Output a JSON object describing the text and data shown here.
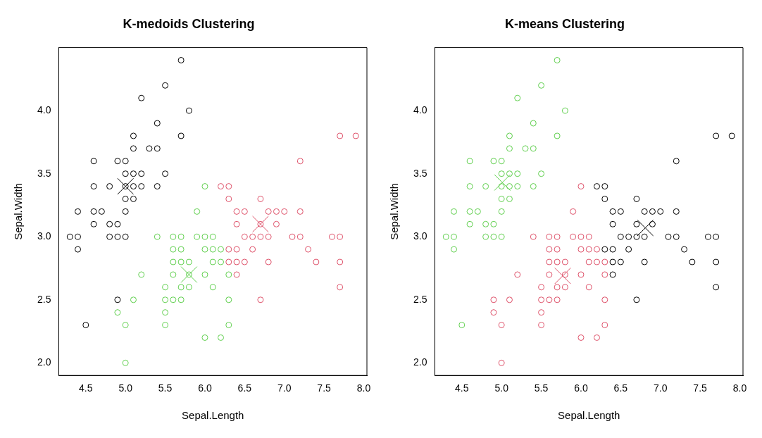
{
  "chart_data": [
    {
      "type": "scatter",
      "title": "K-medoids Clustering",
      "xlabel": "Sepal.Length",
      "ylabel": "Sepal.Width",
      "xlim": [
        4.16,
        8.04
      ],
      "ylim": [
        1.9,
        4.5
      ],
      "xticks": [
        4.5,
        {
          "value": 5,
          "label": "5.0"
        },
        5.5,
        {
          "value": 6,
          "label": "6.0"
        },
        6.5,
        {
          "value": 7,
          "label": "7.0"
        },
        7.5,
        {
          "value": 8,
          "label": "8.0"
        }
      ],
      "yticks": [
        {
          "value": 2,
          "label": "2.0"
        },
        {
          "value": 2.5,
          "label": "2.5"
        },
        {
          "value": 3,
          "label": "3.0"
        },
        {
          "value": 3.5,
          "label": "3.5"
        },
        {
          "value": 4,
          "label": "4.0"
        }
      ],
      "grid": false,
      "legend": false,
      "marker": "circle",
      "series": [
        {
          "color": "#000000",
          "x": [
            4.3,
            4.4,
            4.4,
            4.4,
            4.5,
            4.6,
            4.6,
            4.6,
            4.6,
            4.7,
            4.8,
            4.8,
            4.8,
            4.9,
            4.9,
            4.9,
            4.9,
            5.0,
            5.0,
            5.0,
            5.0,
            5.0,
            5.0,
            5.1,
            5.1,
            5.1,
            5.1,
            5.1,
            5.2,
            5.2,
            5.2,
            5.3,
            5.4,
            5.4,
            5.4,
            5.5,
            5.5,
            5.7,
            5.7,
            5.8
          ],
          "values": [
            3.0,
            2.9,
            3.0,
            3.2,
            2.3,
            3.1,
            3.4,
            3.6,
            3.2,
            3.2,
            3.4,
            3.0,
            3.1,
            3.0,
            3.1,
            3.6,
            2.5,
            3.6,
            3.4,
            3.0,
            3.2,
            3.5,
            3.3,
            3.5,
            3.8,
            3.7,
            3.3,
            3.4,
            3.5,
            3.4,
            4.1,
            3.7,
            3.9,
            3.7,
            3.4,
            4.2,
            3.5,
            4.4,
            3.8,
            4.0
          ]
        },
        {
          "color": "#df536b",
          "x": [
            6.2,
            6.3,
            6.3,
            6.3,
            6.3,
            6.4,
            6.4,
            6.4,
            6.4,
            6.4,
            6.5,
            6.5,
            6.5,
            6.6,
            6.6,
            6.7,
            6.7,
            6.7,
            6.7,
            6.8,
            6.8,
            6.8,
            6.9,
            6.9,
            7.0,
            7.1,
            7.2,
            7.2,
            7.2,
            7.3,
            7.4,
            7.6,
            7.7,
            7.7,
            7.7,
            7.7,
            7.9
          ],
          "values": [
            3.4,
            3.3,
            2.9,
            2.8,
            3.4,
            3.2,
            2.9,
            2.7,
            2.8,
            3.1,
            2.8,
            3.0,
            3.2,
            2.9,
            3.0,
            3.1,
            3.0,
            2.5,
            3.3,
            2.8,
            3.0,
            3.2,
            3.1,
            3.2,
            3.2,
            3.0,
            3.6,
            3.2,
            3.0,
            2.9,
            2.8,
            3.0,
            3.8,
            2.6,
            2.8,
            3.0,
            3.8
          ]
        },
        {
          "color": "#61d04f",
          "x": [
            4.9,
            5.0,
            5.0,
            5.1,
            5.2,
            5.4,
            5.5,
            5.5,
            5.5,
            5.5,
            5.6,
            5.6,
            5.6,
            5.6,
            5.6,
            5.7,
            5.7,
            5.7,
            5.7,
            5.7,
            5.8,
            5.8,
            5.8,
            5.9,
            5.9,
            6.0,
            6.0,
            6.0,
            6.0,
            6.0,
            6.1,
            6.1,
            6.1,
            6.1,
            6.2,
            6.2,
            6.2,
            6.3,
            6.3,
            6.3
          ],
          "values": [
            2.4,
            2.0,
            2.3,
            2.5,
            2.7,
            3.0,
            2.3,
            2.4,
            2.5,
            2.6,
            2.9,
            3.0,
            2.5,
            2.7,
            2.8,
            2.8,
            2.6,
            3.0,
            2.9,
            2.5,
            2.7,
            2.6,
            2.8,
            3.0,
            3.2,
            2.2,
            2.9,
            2.7,
            3.4,
            3.0,
            2.9,
            2.8,
            3.0,
            2.6,
            2.2,
            2.9,
            2.8,
            2.5,
            2.3,
            2.7
          ]
        },
        {
          "color": "#000000",
          "marker": "cross",
          "x": [
            5.0
          ],
          "values": [
            3.4
          ]
        },
        {
          "color": "#df536b",
          "marker": "cross",
          "x": [
            6.7
          ],
          "values": [
            3.1
          ]
        },
        {
          "color": "#61d04f",
          "marker": "cross",
          "x": [
            5.8
          ],
          "values": [
            2.7
          ]
        }
      ]
    },
    {
      "type": "scatter",
      "title": "K-means Clustering",
      "xlabel": "Sepal.Length",
      "ylabel": "Sepal.Width",
      "xlim": [
        4.16,
        8.04
      ],
      "ylim": [
        1.9,
        4.5
      ],
      "xticks": [
        4.5,
        {
          "value": 5,
          "label": "5.0"
        },
        5.5,
        {
          "value": 6,
          "label": "6.0"
        },
        6.5,
        {
          "value": 7,
          "label": "7.0"
        },
        7.5,
        {
          "value": 8,
          "label": "8.0"
        }
      ],
      "yticks": [
        {
          "value": 2,
          "label": "2.0"
        },
        2.5,
        {
          "value": 3,
          "label": "3.0"
        },
        3.5,
        {
          "value": 4,
          "label": "4.0"
        }
      ],
      "grid": false,
      "legend": false,
      "marker": "circle",
      "series": [
        {
          "color": "#000000",
          "x": [
            6.2,
            6.3,
            6.3,
            6.3,
            6.4,
            6.4,
            6.4,
            6.4,
            6.4,
            6.5,
            6.5,
            6.5,
            6.6,
            6.6,
            6.7,
            6.7,
            6.7,
            6.7,
            6.8,
            6.8,
            6.8,
            6.9,
            6.9,
            7.0,
            7.1,
            7.2,
            7.2,
            7.2,
            7.3,
            7.4,
            7.6,
            7.7,
            7.7,
            7.7,
            7.7,
            7.9
          ],
          "values": [
            3.4,
            3.3,
            2.9,
            3.4,
            3.2,
            2.9,
            2.7,
            2.8,
            3.1,
            2.8,
            3.0,
            3.2,
            2.9,
            3.0,
            3.1,
            3.0,
            2.5,
            3.3,
            2.8,
            3.0,
            3.2,
            3.1,
            3.2,
            3.2,
            3.0,
            3.6,
            3.2,
            3.0,
            2.9,
            2.8,
            3.0,
            3.8,
            2.6,
            2.8,
            3.0,
            3.8
          ]
        },
        {
          "color": "#df536b",
          "x": [
            4.9,
            4.9,
            5.0,
            5.0,
            5.1,
            5.2,
            5.4,
            5.5,
            5.5,
            5.5,
            5.5,
            5.6,
            5.6,
            5.6,
            5.6,
            5.6,
            5.7,
            5.7,
            5.7,
            5.7,
            5.7,
            5.8,
            5.8,
            5.8,
            5.9,
            5.9,
            6.0,
            6.0,
            6.0,
            6.0,
            6.0,
            6.1,
            6.1,
            6.1,
            6.1,
            6.2,
            6.2,
            6.2,
            6.3,
            6.3,
            6.3,
            6.3
          ],
          "values": [
            2.4,
            2.5,
            2.0,
            2.3,
            2.5,
            2.7,
            3.0,
            2.3,
            2.4,
            2.5,
            2.6,
            2.9,
            3.0,
            2.5,
            2.7,
            2.8,
            2.8,
            2.6,
            3.0,
            2.9,
            2.5,
            2.7,
            2.6,
            2.8,
            3.0,
            3.2,
            2.2,
            2.9,
            2.7,
            3.4,
            3.0,
            2.9,
            2.8,
            3.0,
            2.6,
            2.2,
            2.9,
            2.8,
            2.5,
            2.3,
            2.7,
            2.8
          ]
        },
        {
          "color": "#61d04f",
          "x": [
            4.3,
            4.4,
            4.4,
            4.4,
            4.5,
            4.6,
            4.6,
            4.6,
            4.6,
            4.7,
            4.8,
            4.8,
            4.8,
            4.9,
            4.9,
            4.9,
            5.0,
            5.0,
            5.0,
            5.0,
            5.0,
            5.0,
            5.1,
            5.1,
            5.1,
            5.1,
            5.1,
            5.2,
            5.2,
            5.2,
            5.3,
            5.4,
            5.4,
            5.4,
            5.5,
            5.5,
            5.7,
            5.7,
            5.8
          ],
          "values": [
            3.0,
            2.9,
            3.0,
            3.2,
            2.3,
            3.1,
            3.4,
            3.6,
            3.2,
            3.2,
            3.4,
            3.0,
            3.1,
            3.0,
            3.1,
            3.6,
            3.6,
            3.4,
            3.0,
            3.2,
            3.5,
            3.3,
            3.5,
            3.8,
            3.7,
            3.3,
            3.4,
            3.5,
            3.4,
            4.1,
            3.7,
            3.9,
            3.7,
            3.4,
            4.2,
            3.5,
            4.4,
            3.8,
            4.0
          ]
        },
        {
          "color": "#000000",
          "marker": "cross",
          "x": [
            6.81
          ],
          "values": [
            3.07
          ]
        },
        {
          "color": "#df536b",
          "marker": "cross",
          "x": [
            5.77
          ],
          "values": [
            2.69
          ]
        },
        {
          "color": "#61d04f",
          "marker": "cross",
          "x": [
            5.01
          ],
          "values": [
            3.43
          ]
        }
      ]
    }
  ]
}
